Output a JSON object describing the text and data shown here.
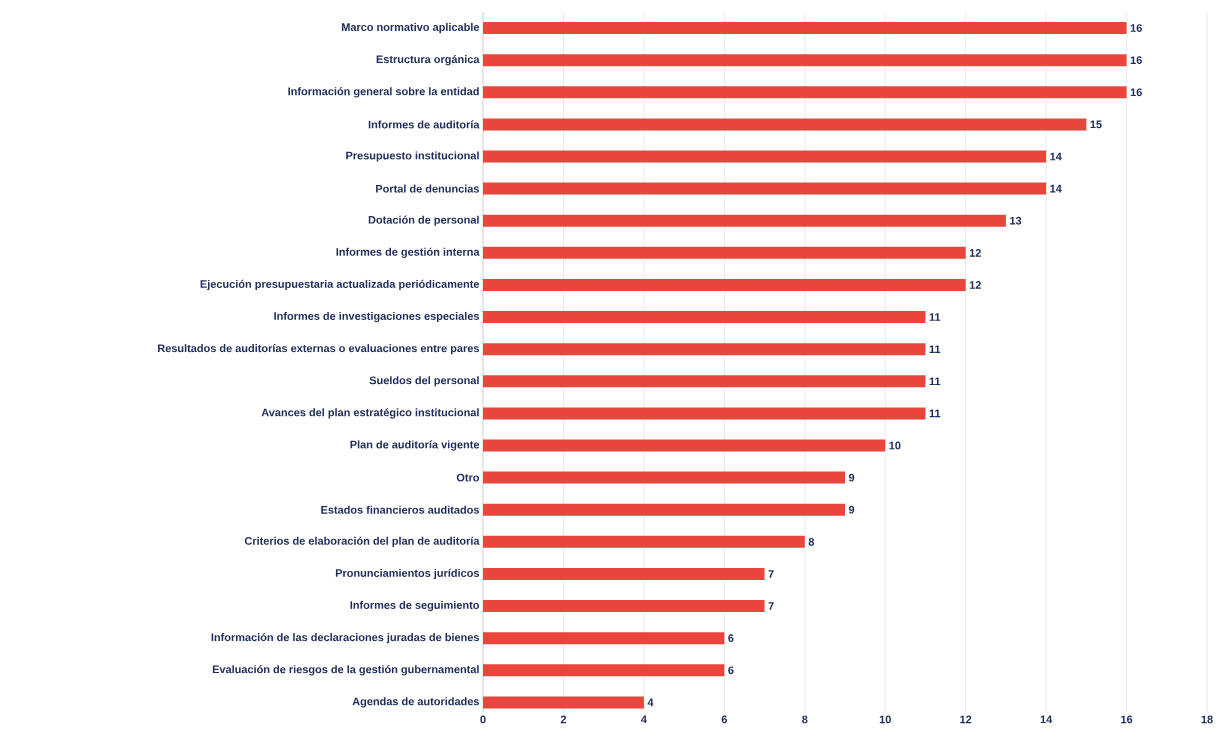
{
  "chart_data": {
    "type": "bar",
    "orientation": "horizontal",
    "categories": [
      "Marco normativo aplicable",
      "Estructura orgánica",
      "Información general sobre la entidad",
      "Informes de auditoría",
      "Presupuesto institucional",
      "Portal de denuncias",
      "Dotación de personal",
      "Informes de gestión interna",
      "Ejecución presupuestaria actualizada periódicamente",
      "Informes de investigaciones especiales",
      "Resultados de auditorías externas o evaluaciones entre pares",
      "Sueldos del personal",
      "Avances del plan estratégico institucional",
      "Plan de auditoría vigente",
      "Otro",
      "Estados financieros auditados",
      "Criterios de elaboración del plan de auditoría",
      "Pronunciamientos jurídicos",
      "Informes de seguimiento",
      "Información de las declaraciones juradas de bienes",
      "Evaluación de riesgos de la gestión gubernamental",
      "Agendas de autoridades"
    ],
    "values": [
      16,
      16,
      16,
      15,
      14,
      14,
      13,
      12,
      12,
      11,
      11,
      11,
      11,
      10,
      9,
      9,
      8,
      7,
      7,
      6,
      6,
      4
    ],
    "color": "#e8453c",
    "xlim": [
      0,
      18
    ],
    "xticks": [
      0,
      2,
      4,
      6,
      8,
      10,
      12,
      14,
      16,
      18
    ],
    "grid": "x",
    "data_labels": true
  }
}
